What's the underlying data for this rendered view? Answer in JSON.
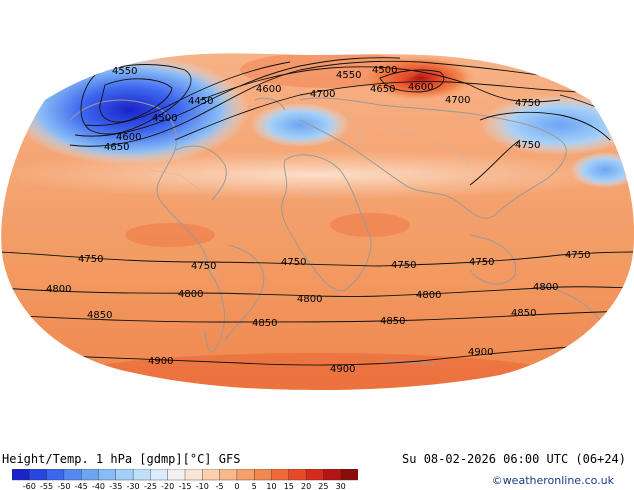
{
  "title": "Height/Temp. 1 hPa [gdmp][°C] GFS",
  "valid_time": "Su 08-02-2026 06:00 UTC (06+24)",
  "credit": "©weatheronline.co.uk",
  "contour_labels": [
    "4550",
    "4450",
    "4500",
    "4600",
    "4650",
    "4600",
    "4500",
    "4550",
    "4650",
    "4600",
    "4700",
    "4700",
    "4750",
    "4750",
    "4750",
    "4750",
    "4750",
    "4750",
    "4750",
    "4750",
    "4800",
    "4800",
    "4800",
    "4800",
    "4800",
    "4850",
    "4850",
    "4850",
    "4850",
    "4900",
    "4900",
    "4900"
  ],
  "colorbar": {
    "ticks": [
      "-60",
      "-55",
      "-50",
      "-45",
      "-40",
      "-35",
      "-30",
      "-25",
      "-20",
      "-15",
      "-10",
      "-5",
      "0",
      "5",
      "10",
      "15",
      "20",
      "25",
      "30"
    ],
    "colors": [
      "#1a22c8",
      "#2846e0",
      "#3c66ee",
      "#5488f2",
      "#6ea4f4",
      "#88bcf6",
      "#a4d0f8",
      "#c0e0fa",
      "#dcecfc",
      "#f2f0f0",
      "#fbe4d2",
      "#fad0b0",
      "#f8b88a",
      "#f5a068",
      "#f28850",
      "#ee6a3a",
      "#e84a28",
      "#d82a1c",
      "#b41414",
      "#8c0c0c"
    ]
  }
}
